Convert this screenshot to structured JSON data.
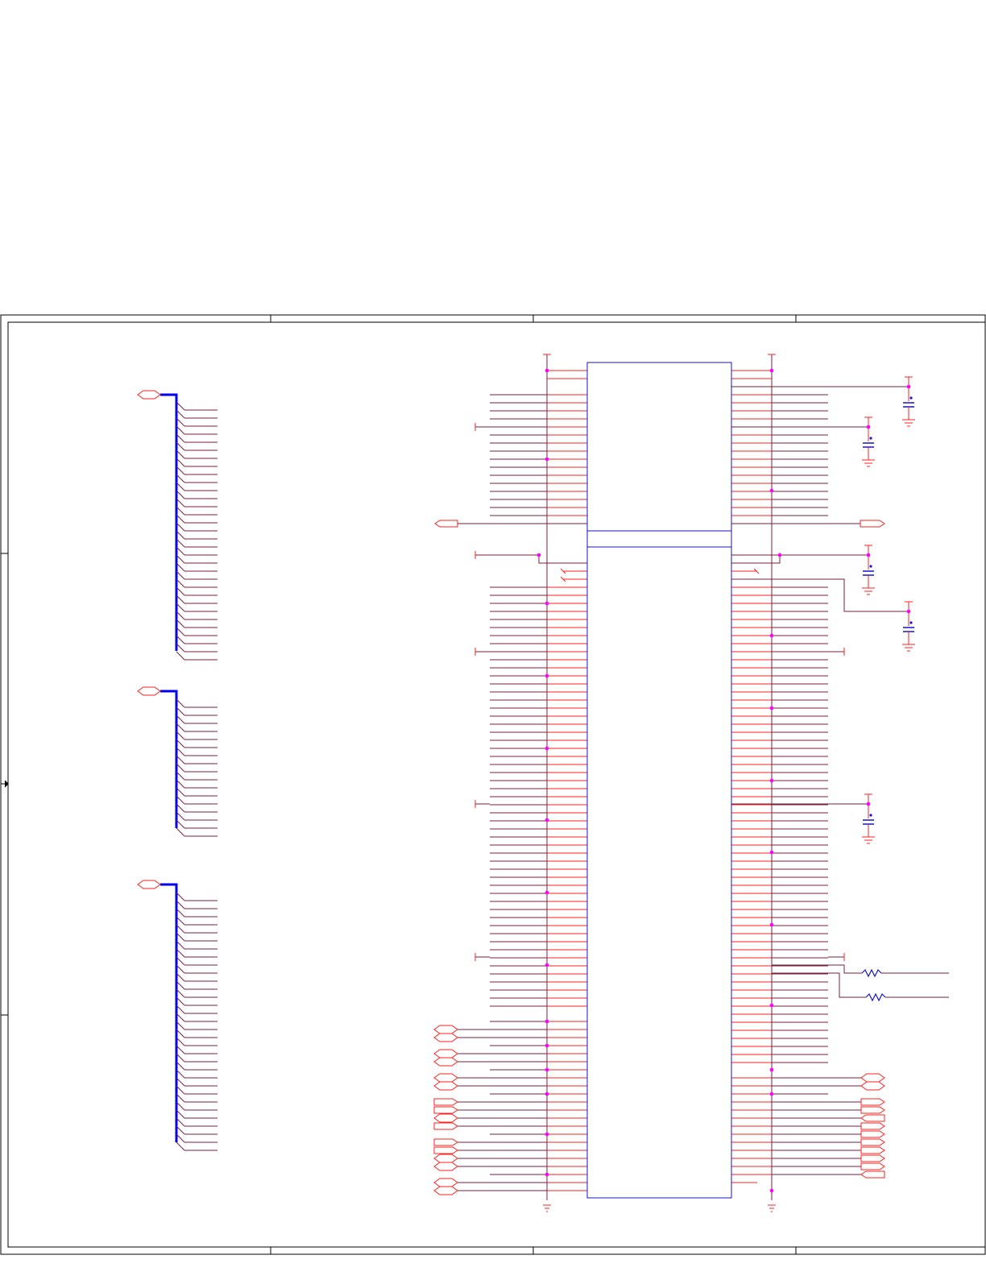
{
  "schematic": {
    "colors": {
      "border": "#000000",
      "wire": "#7a1e3c",
      "pin": "#ff2020",
      "part": "#1414c8",
      "bus": "#0000ee",
      "junction": "#ff00ff",
      "capacitor": "#1414c8",
      "port": "#ff2020"
    },
    "buses": [
      {
        "id": "bus-1",
        "entries": 32
      },
      {
        "id": "bus-2",
        "entries": 17
      },
      {
        "id": "bus-3",
        "entries": 32
      }
    ],
    "connector_blocks": [
      {
        "id": "block-upper"
      },
      {
        "id": "block-lower"
      }
    ],
    "components": {
      "capacitors": 5,
      "resistors": 2,
      "grounds": 2
    }
  }
}
